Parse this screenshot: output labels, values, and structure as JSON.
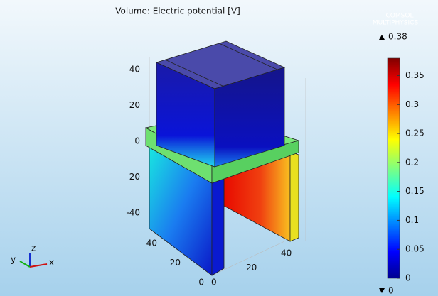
{
  "chart_data": {
    "type": "volume",
    "title": "Volume: Electric potential [V]",
    "logo": [
      "COMSOL",
      "MULTIPHYSICS"
    ],
    "clim": [
      0,
      0.38
    ],
    "cticks": [
      0,
      0.05,
      0.1,
      0.15,
      0.2,
      0.25,
      0.3,
      0.35
    ],
    "zticks": [
      40,
      20,
      0,
      -20,
      -40
    ],
    "yticks": [
      40,
      20,
      0
    ],
    "xticks": [
      0,
      20,
      40
    ],
    "axis_labels": [
      "x",
      "y",
      "z"
    ]
  }
}
